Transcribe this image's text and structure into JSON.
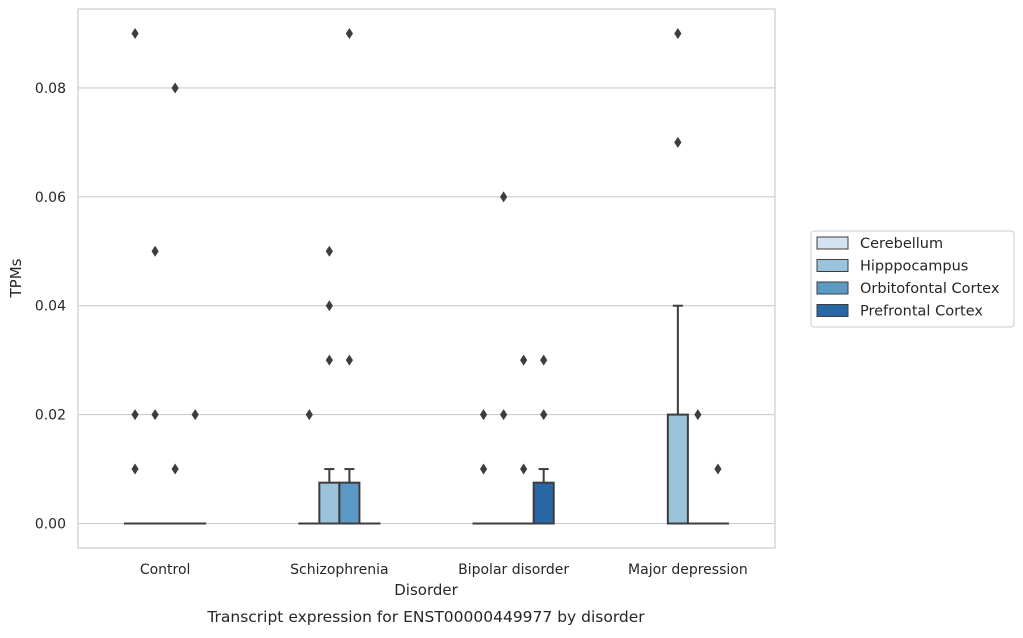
{
  "chart_data": {
    "type": "boxplot",
    "title": "",
    "caption": "Transcript expression for ENST00000449977 by disorder",
    "xlabel": "Disorder",
    "ylabel": "TPMs",
    "ylim": [
      -0.0045,
      0.0945
    ],
    "yticks": [
      0.0,
      0.02,
      0.04,
      0.06,
      0.08
    ],
    "ytick_labels": [
      "0.00",
      "0.02",
      "0.04",
      "0.06",
      "0.08"
    ],
    "grid": "horizontal",
    "legend_position": "right",
    "categories": [
      "Control",
      "Schizophrenia",
      "Bipolar disorder",
      "Major depression"
    ],
    "series": [
      {
        "name": "Cerebellum",
        "color": "#d4e3f2",
        "boxes": [
          {
            "q1": 0,
            "median": 0,
            "q3": 0,
            "whisker_low": 0,
            "whisker_high": 0,
            "outliers": [
              0.01,
              0.02,
              0.09
            ]
          },
          {
            "q1": 0,
            "median": 0,
            "q3": 0,
            "whisker_low": 0,
            "whisker_high": 0,
            "outliers": [
              0.02
            ]
          },
          {
            "q1": 0,
            "median": 0,
            "q3": 0,
            "whisker_low": 0,
            "whisker_high": 0,
            "outliers": [
              0.01,
              0.02
            ]
          },
          null
        ]
      },
      {
        "name": "Hipppocampus",
        "color": "#9cc3dc",
        "boxes": [
          {
            "q1": 0,
            "median": 0,
            "q3": 0,
            "whisker_low": 0,
            "whisker_high": 0,
            "outliers": [
              0.02,
              0.05
            ]
          },
          {
            "q1": 0,
            "median": 0,
            "q3": 0.0075,
            "whisker_low": 0,
            "whisker_high": 0.01,
            "outliers": [
              0.03,
              0.04,
              0.05
            ]
          },
          {
            "q1": 0,
            "median": 0,
            "q3": 0,
            "whisker_low": 0,
            "whisker_high": 0,
            "outliers": [
              0.02,
              0.06
            ]
          },
          {
            "q1": 0,
            "median": 0,
            "q3": 0.02,
            "whisker_low": 0,
            "whisker_high": 0.04,
            "outliers": [
              0.07,
              0.09
            ]
          }
        ]
      },
      {
        "name": "Orbitofontal Cortex",
        "color": "#5b9ac4",
        "boxes": [
          {
            "q1": 0,
            "median": 0,
            "q3": 0,
            "whisker_low": 0,
            "whisker_high": 0,
            "outliers": [
              0.01,
              0.08
            ]
          },
          {
            "q1": 0,
            "median": 0,
            "q3": 0.0075,
            "whisker_low": 0,
            "whisker_high": 0.01,
            "outliers": [
              0.03,
              0.09
            ]
          },
          {
            "q1": 0,
            "median": 0,
            "q3": 0,
            "whisker_low": 0,
            "whisker_high": 0,
            "outliers": [
              0.01,
              0.03
            ]
          },
          {
            "q1": 0,
            "median": 0,
            "q3": 0,
            "whisker_low": 0,
            "whisker_high": 0,
            "outliers": [
              0.02
            ]
          }
        ]
      },
      {
        "name": "Prefrontal Cortex",
        "color": "#2767a6",
        "boxes": [
          {
            "q1": 0,
            "median": 0,
            "q3": 0,
            "whisker_low": 0,
            "whisker_high": 0,
            "outliers": [
              0.02
            ]
          },
          {
            "q1": 0,
            "median": 0,
            "q3": 0,
            "whisker_low": 0,
            "whisker_high": 0,
            "outliers": []
          },
          {
            "q1": 0,
            "median": 0,
            "q3": 0.0075,
            "whisker_low": 0,
            "whisker_high": 0.01,
            "outliers": [
              0.02,
              0.03
            ]
          },
          {
            "q1": 0,
            "median": 0,
            "q3": 0,
            "whisker_low": 0,
            "whisker_high": 0,
            "outliers": [
              0.01
            ]
          }
        ]
      }
    ]
  }
}
